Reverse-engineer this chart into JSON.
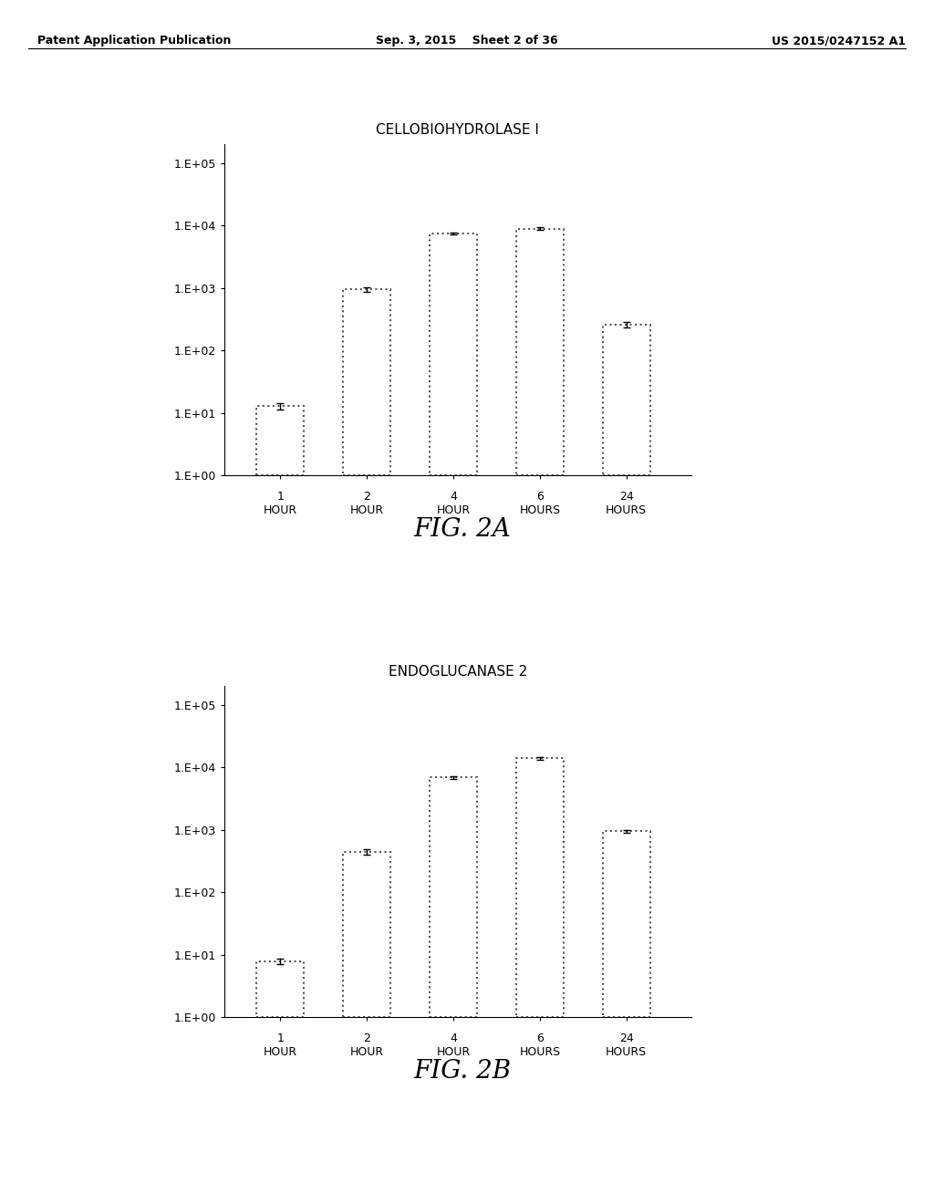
{
  "page_header": {
    "left": "Patent Application Publication",
    "center": "Sep. 3, 2015    Sheet 2 of 36",
    "right": "US 2015/0247152 A1"
  },
  "chart_a": {
    "title": "CELLOBIOHYDROLASE I",
    "values": [
      13,
      950,
      7500,
      9000,
      260
    ],
    "errors": [
      1.5,
      80,
      300,
      350,
      25
    ],
    "caption": "FIG. 2A"
  },
  "chart_b": {
    "title": "ENDOGLUCANASE 2",
    "values": [
      8,
      450,
      7000,
      14000,
      950
    ],
    "errors": [
      0.8,
      50,
      350,
      600,
      60
    ],
    "caption": "FIG. 2B"
  },
  "x_labels_line1": [
    "1",
    "2",
    "4",
    "6",
    "24"
  ],
  "x_labels_line2": [
    "HOUR",
    "HOUR",
    "HOUR",
    "HOURS",
    "HOURS"
  ],
  "bar_facecolor": "#ffffff",
  "bar_edgecolor": "#555555",
  "bar_linestyle": "dotted",
  "bar_linewidth": 1.5,
  "errorbar_color": "#000000",
  "errorbar_capsize": 3,
  "errorbar_linewidth": 1.0,
  "background_color": "#ffffff",
  "ylim_min": 1.0,
  "ylim_max": 200000,
  "ytick_labels": [
    "1.E+00",
    "1.E+01",
    "1.E+02",
    "1.E+03",
    "1.E+04",
    "1.E+05"
  ],
  "ytick_values": [
    1,
    10,
    100,
    1000,
    10000,
    100000
  ],
  "title_fontsize": 11,
  "caption_fontsize": 20,
  "tick_label_fontsize": 9,
  "xlabel_fontsize": 9,
  "header_fontsize": 9
}
